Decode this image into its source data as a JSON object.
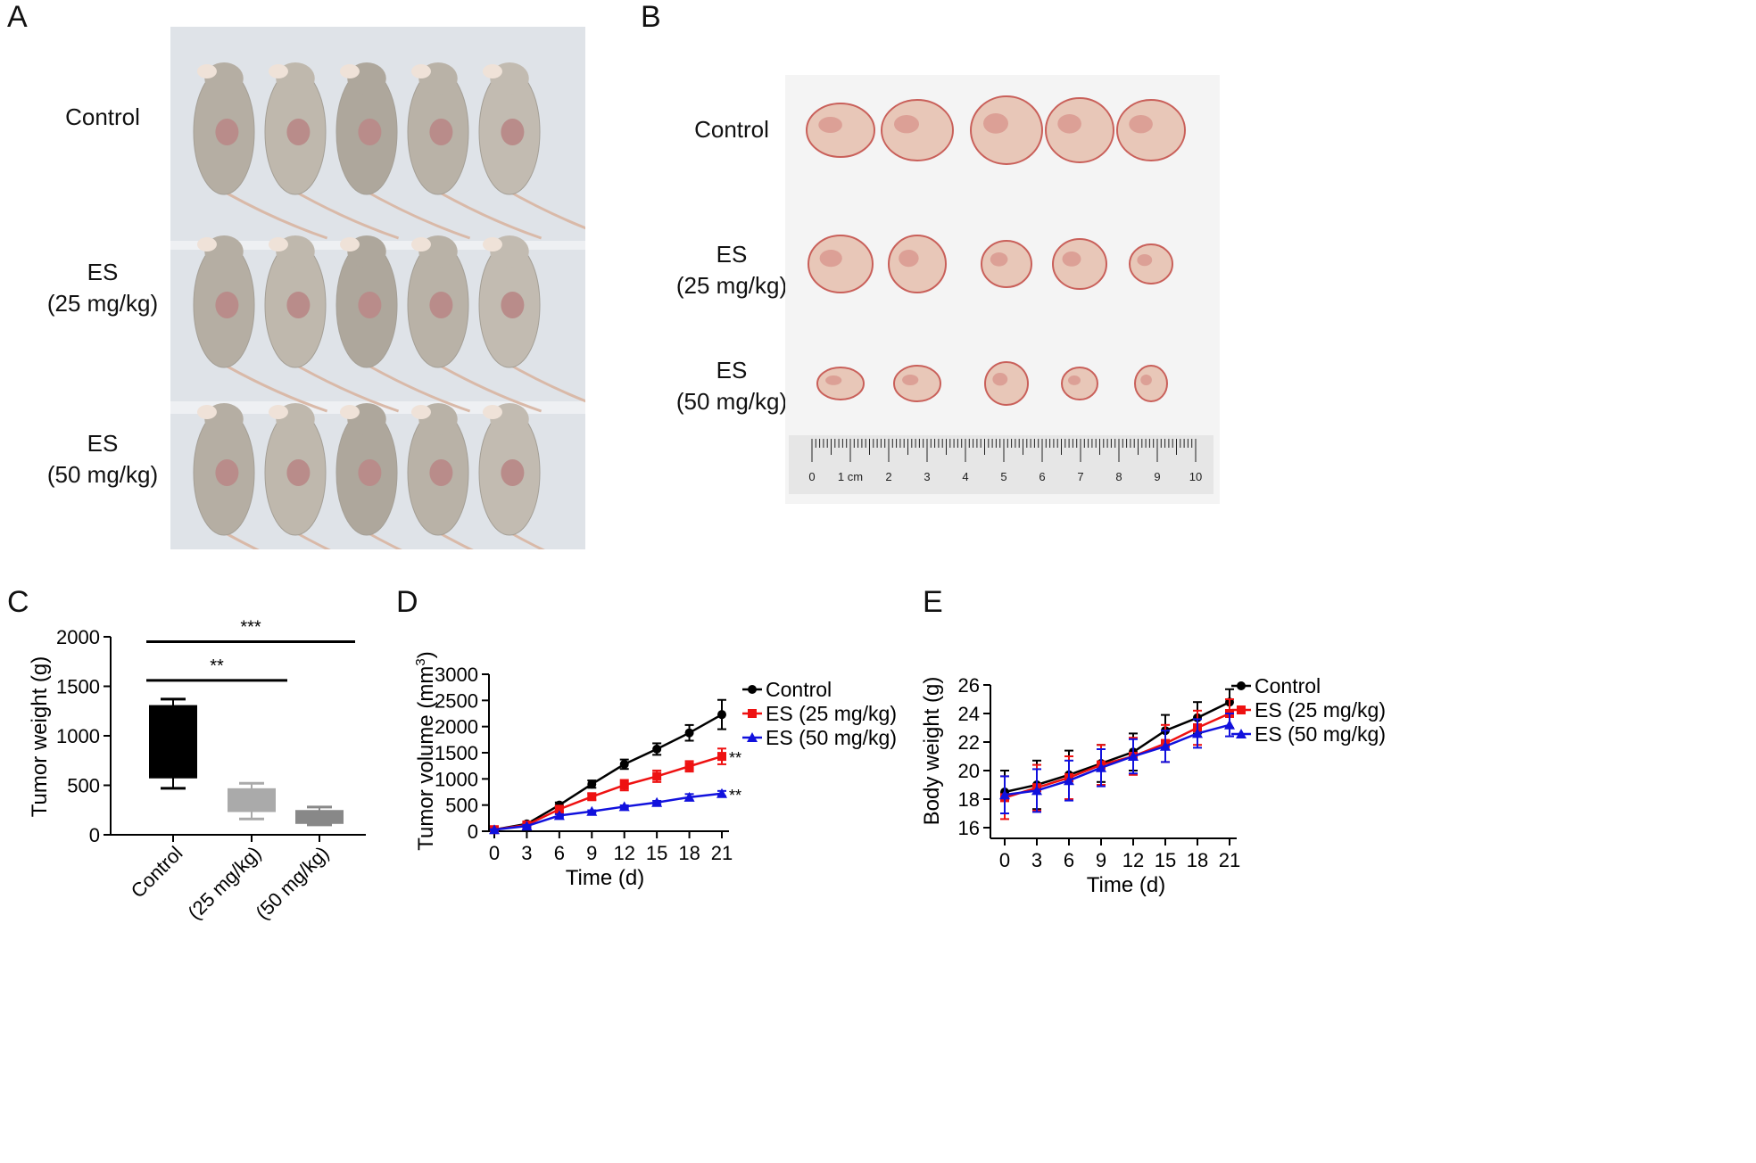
{
  "panels": {
    "a": {
      "letter": "A",
      "groups": [
        {
          "lines": [
            "Control"
          ]
        },
        {
          "lines": [
            "ES",
            "(25 mg/kg)"
          ]
        },
        {
          "lines": [
            "ES",
            "(50 mg/kg)"
          ]
        }
      ]
    },
    "b": {
      "letter": "B",
      "groups": [
        {
          "lines": [
            "Control"
          ]
        },
        {
          "lines": [
            "ES",
            "(25 mg/kg)"
          ]
        },
        {
          "lines": [
            "ES",
            "(50 mg/kg)"
          ]
        }
      ],
      "ruler_labels": [
        "0",
        "1 cm",
        "2",
        "3",
        "4",
        "5",
        "6",
        "7",
        "8",
        "9",
        "10"
      ]
    },
    "c": {
      "letter": "C"
    },
    "d": {
      "letter": "D"
    },
    "e": {
      "letter": "E"
    }
  },
  "colors": {
    "control": "#000000",
    "es25": "#ee1111",
    "es50": "#1111dd",
    "box_es25": "#aaaaaa",
    "box_es50": "#888888"
  },
  "chart_data": [
    {
      "type": "box",
      "ylabel": "Tumor weight (g)",
      "ylim": [
        0,
        2000
      ],
      "yticks": [
        0,
        500,
        1000,
        1500,
        2000
      ],
      "categories": [
        "Control",
        "(25 mg/kg)",
        "(50 mg/kg)"
      ],
      "boxes": [
        {
          "min": 470,
          "q1": 570,
          "q3": 1310,
          "max": 1370
        },
        {
          "min": 160,
          "q1": 230,
          "q3": 470,
          "max": 520
        },
        {
          "min": 100,
          "q1": 110,
          "q3": 250,
          "max": 280
        }
      ],
      "significance": [
        {
          "from": 0,
          "to": 1,
          "label": "**",
          "y": 1560
        },
        {
          "from": 0,
          "to": 2,
          "label": "***",
          "y": 1950
        }
      ]
    },
    {
      "type": "line",
      "xlabel": "Time (d)",
      "ylabel": "Tumor volume (mm",
      "ylabel_sup": "3",
      "ylabel_end": ")",
      "x": [
        0,
        3,
        6,
        9,
        12,
        15,
        18,
        21
      ],
      "xlim": [
        0,
        21
      ],
      "ylim": [
        0,
        3000
      ],
      "yticks": [
        0,
        500,
        1000,
        1500,
        2000,
        2500,
        3000
      ],
      "series": [
        {
          "name": "Control",
          "values": [
            30,
            140,
            500,
            900,
            1280,
            1570,
            1880,
            2230
          ],
          "err": [
            15,
            30,
            50,
            70,
            90,
            110,
            150,
            280
          ]
        },
        {
          "name": "ES (25 mg/kg)",
          "values": [
            30,
            120,
            420,
            660,
            880,
            1050,
            1240,
            1430
          ],
          "err": [
            15,
            25,
            40,
            60,
            100,
            110,
            100,
            150
          ],
          "annotation": "**"
        },
        {
          "name": "ES (50 mg/kg)",
          "values": [
            30,
            100,
            300,
            380,
            470,
            550,
            650,
            720
          ],
          "err": [
            10,
            20,
            25,
            20,
            25,
            30,
            60,
            50
          ],
          "annotation": "**"
        }
      ]
    },
    {
      "type": "line",
      "xlabel": "Time (d)",
      "ylabel": "Body weight (g)",
      "x": [
        0,
        3,
        6,
        9,
        12,
        15,
        18,
        21
      ],
      "xlim": [
        0,
        21
      ],
      "ylim": [
        15,
        26
      ],
      "yticks": [
        16,
        18,
        20,
        22,
        24,
        26
      ],
      "series": [
        {
          "name": "Control",
          "values": [
            18.5,
            19.0,
            19.7,
            20.5,
            21.3,
            22.8,
            23.7,
            24.8
          ],
          "err": [
            1.5,
            1.7,
            1.7,
            1.3,
            1.3,
            1.1,
            1.1,
            0.9
          ]
        },
        {
          "name": "ES (25 mg/kg)",
          "values": [
            18.1,
            18.8,
            19.5,
            20.4,
            21.0,
            21.9,
            23.0,
            24.0
          ],
          "err": [
            1.5,
            1.6,
            1.5,
            1.4,
            1.3,
            1.3,
            1.2,
            1.0
          ]
        },
        {
          "name": "ES (50 mg/kg)",
          "values": [
            18.3,
            18.6,
            19.3,
            20.2,
            21.0,
            21.7,
            22.6,
            23.2
          ],
          "err": [
            1.3,
            1.5,
            1.4,
            1.3,
            1.2,
            1.1,
            1.0,
            0.8
          ]
        }
      ]
    }
  ]
}
